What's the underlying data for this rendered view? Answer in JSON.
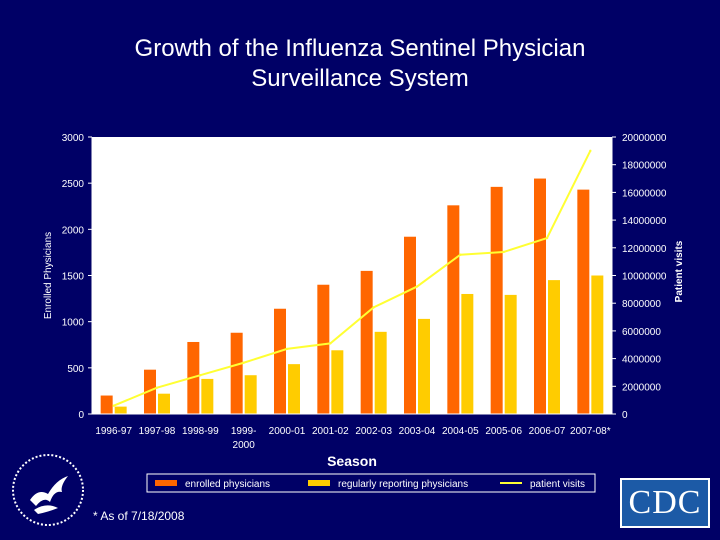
{
  "page": {
    "title_line1": "Growth of the Influenza Sentinel Physician",
    "title_line2": "Surveillance System",
    "footnote": "* As of 7/18/2008",
    "cdc_logo_text": "CDC"
  },
  "chart_data": {
    "type": "bar",
    "title": "Growth of the Influenza Sentinel Physician Surveillance System",
    "xlabel": "Season",
    "ylabel": "Enrolled Physicians",
    "y2label": "Patient visits",
    "categories": [
      "1996-97",
      "1997-98",
      "1998-99",
      "1999-2000",
      "2000-01",
      "2001-02",
      "2002-03",
      "2003-04",
      "2004-05",
      "2005-06",
      "2006-07",
      "2007-08*"
    ],
    "category_lines": [
      [
        "1996-97"
      ],
      [
        "1997-98"
      ],
      [
        "1998-99"
      ],
      [
        "1999-",
        "2000"
      ],
      [
        "2000-01"
      ],
      [
        "2001-02"
      ],
      [
        "2002-03"
      ],
      [
        "2003-04"
      ],
      [
        "2004-05"
      ],
      [
        "2005-06"
      ],
      [
        "2006-07"
      ],
      [
        "2007-08*"
      ]
    ],
    "ylim": [
      0,
      3000
    ],
    "yticks": [
      0,
      500,
      1000,
      1500,
      2000,
      2500,
      3000
    ],
    "y2lim": [
      0,
      20000000
    ],
    "y2ticks": [
      0,
      2000000,
      4000000,
      6000000,
      8000000,
      10000000,
      12000000,
      14000000,
      16000000,
      18000000,
      20000000
    ],
    "grid": false,
    "legend_position": "bottom",
    "series": [
      {
        "name": "enrolled physicians",
        "kind": "bar",
        "axis": "left",
        "color": "#ff6600",
        "values": [
          200,
          480,
          780,
          880,
          1140,
          1400,
          1550,
          1920,
          2260,
          2460,
          2550,
          2430
        ]
      },
      {
        "name": "regularly reporting physicians",
        "kind": "bar",
        "axis": "left",
        "color": "#ffcc00",
        "values": [
          80,
          220,
          380,
          420,
          540,
          690,
          890,
          1030,
          1300,
          1290,
          1450,
          1500
        ]
      },
      {
        "name": "patient visits",
        "kind": "line",
        "axis": "right",
        "color": "#ffff33",
        "values": [
          600000,
          1900000,
          2800000,
          3700000,
          4700000,
          5100000,
          7700000,
          9200000,
          11500000,
          11700000,
          12700000,
          19000000
        ]
      }
    ],
    "colors": {
      "plot_background": "#ffffff",
      "background": "#000066",
      "axis_text": "#ffffff"
    }
  }
}
